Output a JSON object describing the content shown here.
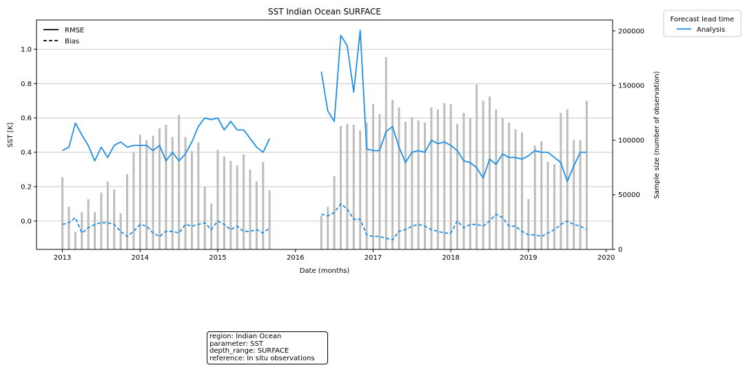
{
  "chart_data": {
    "type": "line",
    "title": "SST Indian Ocean SURFACE",
    "xlabel": "Date (months)",
    "ylabel": "SST [K]",
    "y2label": "Sample size (number of observation)",
    "x_ticks": [
      "2013",
      "2014",
      "2015",
      "2016",
      "2017",
      "2018",
      "2019",
      "2020"
    ],
    "y_ticks": [
      "0.0",
      "0.2",
      "0.4",
      "0.6",
      "0.8",
      "1.0"
    ],
    "y2_ticks": [
      "0",
      "50000",
      "100000",
      "150000",
      "200000"
    ],
    "ylim": [
      -0.165,
      1.17
    ],
    "y2lim": [
      0,
      210000
    ],
    "xlim": [
      "2012-09",
      "2020-02"
    ],
    "grid": "horizontal",
    "style_legend": {
      "title": "",
      "entries": [
        "RMSE",
        "Bias"
      ],
      "placement": "upper-left"
    },
    "series_legend": {
      "title": "Forecast lead time",
      "entries": [
        "Analysis"
      ],
      "placement": "outside-right"
    },
    "series": [
      {
        "name": "Analysis",
        "color": "#1f8fe6",
        "segments": [
          {
            "start": "2013-01",
            "rmse": [
              0.41,
              0.43,
              0.57,
              0.5,
              0.44,
              0.35,
              0.43,
              0.37,
              0.44,
              0.46,
              0.43,
              0.44,
              0.44,
              0.44,
              0.41,
              0.44,
              0.35,
              0.4,
              0.35,
              0.39,
              0.46,
              0.55,
              0.6,
              0.59,
              0.6,
              0.53,
              0.58,
              0.53,
              0.53,
              0.48,
              0.43,
              0.4,
              0.48
            ],
            "bias": [
              -0.02,
              -0.01,
              0.02,
              -0.07,
              -0.04,
              -0.02,
              -0.01,
              -0.01,
              -0.02,
              -0.06,
              -0.09,
              -0.06,
              -0.02,
              -0.03,
              -0.07,
              -0.09,
              -0.06,
              -0.06,
              -0.07,
              -0.02,
              -0.03,
              -0.02,
              -0.01,
              -0.05,
              0.0,
              -0.02,
              -0.05,
              -0.03,
              -0.06,
              -0.06,
              -0.05,
              -0.07,
              -0.04
            ]
          },
          {
            "start": "2016-05",
            "rmse": [
              0.87,
              0.64,
              0.58,
              1.08,
              1.02,
              0.75,
              1.11,
              0.42,
              0.41,
              0.41,
              0.52,
              0.55,
              0.43,
              0.34,
              0.4,
              0.41,
              0.4,
              0.47,
              0.45,
              0.46,
              0.44,
              0.41,
              0.35,
              0.34,
              0.31,
              0.25,
              0.36,
              0.33,
              0.39,
              0.37,
              0.37,
              0.36,
              0.38,
              0.41,
              0.4,
              0.4,
              0.37,
              0.34,
              0.23,
              0.32,
              0.4,
              0.4
            ],
            "bias": [
              0.04,
              0.03,
              0.05,
              0.1,
              0.07,
              0.01,
              0.01,
              -0.08,
              -0.09,
              -0.09,
              -0.1,
              -0.11,
              -0.06,
              -0.05,
              -0.03,
              -0.02,
              -0.03,
              -0.05,
              -0.06,
              -0.07,
              -0.07,
              0.0,
              -0.04,
              -0.02,
              -0.02,
              -0.03,
              0.0,
              0.04,
              0.02,
              -0.03,
              -0.03,
              -0.06,
              -0.08,
              -0.08,
              -0.09,
              -0.07,
              -0.05,
              -0.02,
              0.0,
              -0.02,
              -0.03,
              -0.05
            ]
          }
        ]
      },
      {
        "name": "Sample size",
        "color": "#bdbdbd",
        "axis": "right",
        "segments": [
          {
            "start": "2013-01",
            "values": [
              66000,
              39000,
              16000,
              34000,
              46000,
              34000,
              52000,
              62000,
              55000,
              33000,
              69000,
              89000,
              105000,
              100000,
              104000,
              111000,
              114000,
              103000,
              123000,
              103000,
              90000,
              98000,
              57000,
              42000,
              91000,
              85000,
              81000,
              77000,
              87000,
              73000,
              62000,
              80000,
              54000
            ]
          },
          {
            "start": "2016-05",
            "values": [
              31000,
              39000,
              67000,
              113000,
              115000,
              114000,
              109000,
              116000,
              133000,
              124000,
              176000,
              137000,
              130000,
              117000,
              121000,
              118000,
              116000,
              130000,
              128000,
              134000,
              133000,
              115000,
              125000,
              120000,
              151000,
              136000,
              140000,
              128000,
              120000,
              116000,
              110000,
              107000,
              46000,
              95000,
              99000,
              80000,
              78000,
              125000,
              128000,
              100000,
              100000,
              136000
            ]
          }
        ]
      }
    ]
  },
  "info_box": {
    "region": "region: Indian Ocean",
    "parameter": "parameter: SST",
    "depth_range": "depth_range: SURFACE",
    "reference": "reference: In situ observations"
  }
}
